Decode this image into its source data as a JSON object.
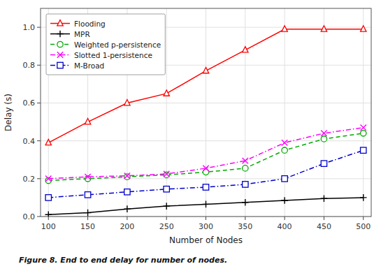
{
  "chart_data": {
    "type": "line",
    "x": [
      100,
      150,
      200,
      250,
      300,
      350,
      400,
      450,
      500
    ],
    "series": [
      {
        "name": "Flooding",
        "color": "#ff0000",
        "marker": "triangle",
        "line_style": "solid",
        "values": [
          0.39,
          0.5,
          0.6,
          0.65,
          0.77,
          0.88,
          0.99,
          0.99,
          0.99
        ]
      },
      {
        "name": "MPR",
        "color": "#000000",
        "marker": "plus",
        "line_style": "solid",
        "values": [
          0.01,
          0.02,
          0.04,
          0.055,
          0.065,
          0.075,
          0.085,
          0.095,
          0.1
        ]
      },
      {
        "name": "Weighted p-persistence",
        "color": "#00aa00",
        "marker": "circle",
        "line_style": "dashed",
        "values": [
          0.19,
          0.2,
          0.21,
          0.22,
          0.235,
          0.255,
          0.35,
          0.41,
          0.44
        ]
      },
      {
        "name": "Slotted 1-persistence",
        "color": "#ff00ff",
        "marker": "x",
        "line_style": "dashdot",
        "values": [
          0.2,
          0.21,
          0.215,
          0.225,
          0.255,
          0.295,
          0.39,
          0.44,
          0.47
        ]
      },
      {
        "name": "M-Broad",
        "color": "#0000cc",
        "marker": "square",
        "line_style": "dashdot",
        "values": [
          0.1,
          0.115,
          0.13,
          0.145,
          0.155,
          0.17,
          0.2,
          0.28,
          0.35
        ]
      }
    ],
    "x_label": "Number of Nodes",
    "y_label": "Delay (s)",
    "caption": "Figure 8. End to end delay for number of nodes.",
    "xlim": [
      90,
      510
    ],
    "ylim": [
      0,
      1.1
    ],
    "xticks": [
      100,
      150,
      200,
      250,
      300,
      350,
      400,
      450,
      500
    ],
    "yticks": [
      {
        "value": 0,
        "label": "0.0"
      },
      0.2,
      0.4,
      0.6,
      0.8,
      {
        "value": 1.0,
        "label": "1.0"
      }
    ],
    "grid": true,
    "legend": "upper left"
  }
}
